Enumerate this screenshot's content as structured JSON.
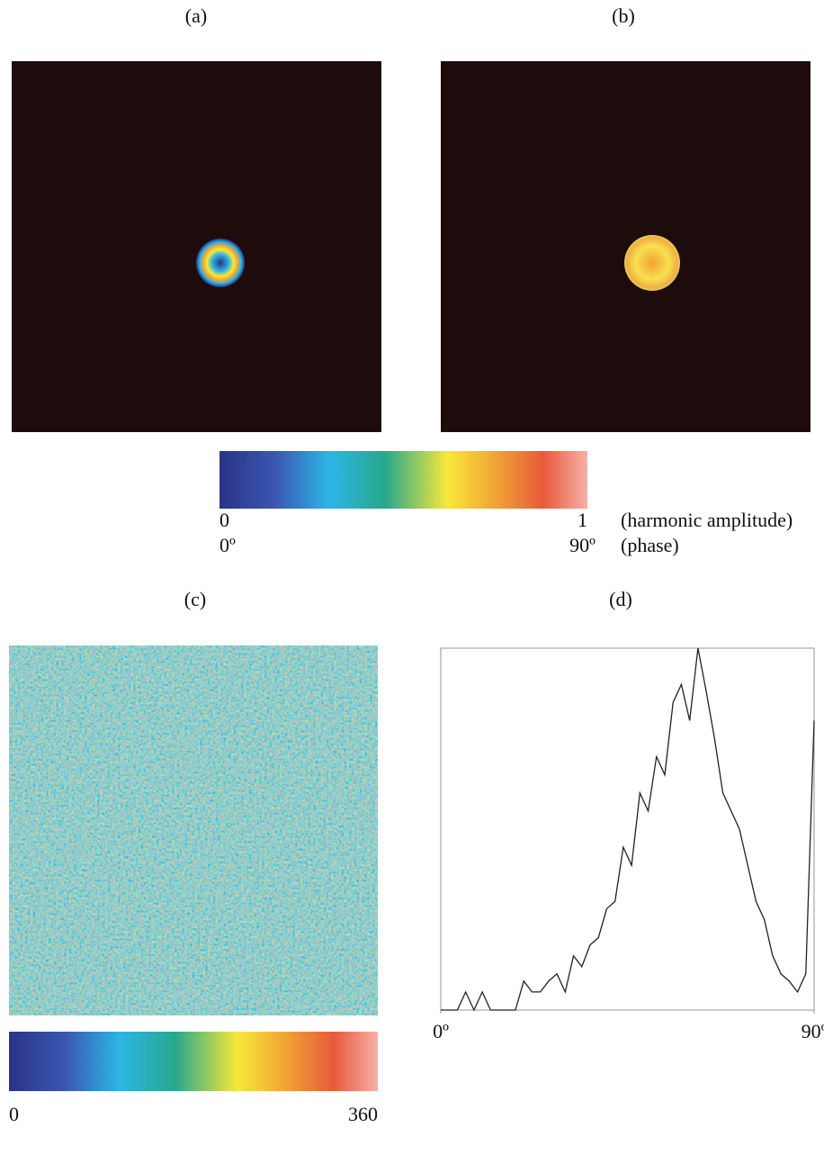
{
  "panels": {
    "a": "(a)",
    "b": "(b)",
    "c": "(c)",
    "d": "(d)"
  },
  "colorbar_top": {
    "min_amplitude": "0",
    "max_amplitude": "1",
    "amplitude_label": "(harmonic amplitude)",
    "min_phase": "0º",
    "max_phase": "90º",
    "phase_label": "(phase)"
  },
  "colorbar_bottom": {
    "min": "0",
    "max": "360"
  },
  "chart_data": {
    "type": "line",
    "x": [
      0,
      2,
      4,
      6,
      8,
      10,
      12,
      14,
      16,
      18,
      20,
      22,
      24,
      26,
      28,
      30,
      32,
      34,
      36,
      38,
      40,
      42,
      44,
      46,
      48,
      50,
      52,
      54,
      56,
      58,
      60,
      62,
      64,
      66,
      68,
      70,
      72,
      74,
      76,
      78,
      80,
      82,
      84,
      86,
      88,
      90
    ],
    "values": [
      0,
      0,
      0,
      5,
      0,
      5,
      0,
      0,
      0,
      0,
      8,
      5,
      5,
      8,
      10,
      5,
      15,
      12,
      18,
      20,
      28,
      30,
      45,
      40,
      60,
      55,
      70,
      65,
      85,
      90,
      80,
      100,
      88,
      75,
      60,
      55,
      50,
      40,
      30,
      25,
      15,
      10,
      8,
      5,
      10,
      80
    ],
    "color": "#222222",
    "xlim": [
      0,
      90
    ],
    "ylim": [
      0,
      100
    ],
    "xticks": [
      {
        "value": 0,
        "label": "0º"
      },
      {
        "value": 90,
        "label": "90º"
      }
    ]
  }
}
